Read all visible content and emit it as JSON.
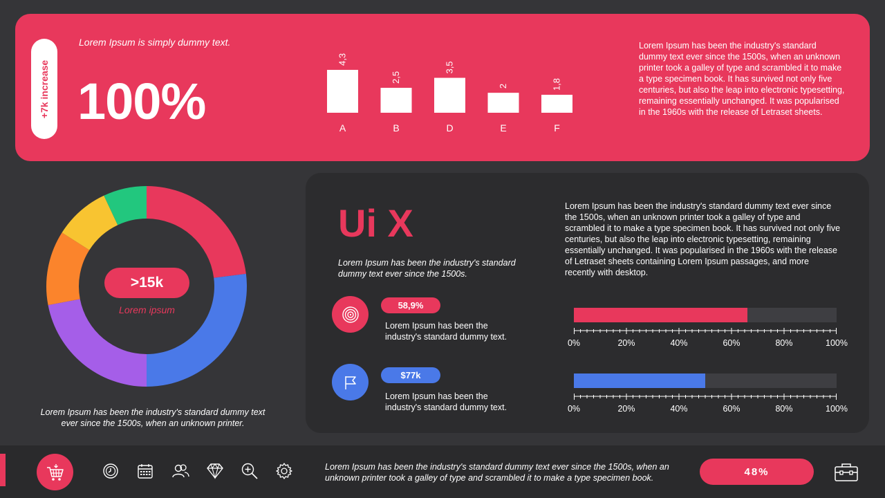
{
  "header": {
    "increase_label": "+7k increase",
    "tagline": "Lorem Ipsum is simply dummy text.",
    "big_number": "100%",
    "paragraph": "Lorem Ipsum has been the industry's standard dummy text ever since the 1500s, when an unknown printer took a galley of type and scrambled it to make a type specimen book. It has survived not only five centuries, but also the leap into electronic typesetting, remaining essentially unchanged. It was popularised in the 1960s with the release of Letraset sheets."
  },
  "chart_data": [
    {
      "type": "bar",
      "categories": [
        "A",
        "B",
        "D",
        "E",
        "F"
      ],
      "values": [
        4.3,
        2.5,
        3.5,
        2,
        1.8
      ],
      "value_labels": [
        "4,3",
        "2,5",
        "3,5",
        "2",
        "1,8"
      ],
      "title": "",
      "xlabel": "",
      "ylabel": "",
      "ylim": [
        0,
        4.3
      ],
      "color": "#ffffff"
    },
    {
      "type": "pie",
      "donut": true,
      "values": [
        23,
        27,
        22,
        12,
        9,
        7
      ],
      "colors": [
        "#e8385c",
        "#4a79e8",
        "#a55ee8",
        "#fb842c",
        "#f8c431",
        "#22c77e"
      ]
    }
  ],
  "donut": {
    "center_value": ">15k",
    "center_label": "Lorem ipsum",
    "caption": "Lorem Ipsum has been the industry's standard dummy text ever since the 1500s, when an unknown printer."
  },
  "panel": {
    "title": "Ui X",
    "subtitle": "Lorem Ipsum has been the industry's standard dummy text ever since the 1500s.",
    "paragraph": "Lorem Ipsum has been the industry's standard dummy text ever since the 1500s, when an unknown printer took a galley of type and scrambled it to make a type specimen book. It has survived not only five centuries, but also the leap into electronic typesetting, remaining essentially unchanged. It was popularised in the 1960s with the release of Letraset sheets containing Lorem Ipsum passages, and more recently with desktop.",
    "stats": [
      {
        "badge": "58,9%",
        "text": "Lorem Ipsum has been the industry's standard dummy text.",
        "icon": "target-icon",
        "color": "#e8385c"
      },
      {
        "badge": "$77k",
        "text": "Lorem Ipsum has been the industry's standard dummy text.",
        "icon": "flag-icon",
        "color": "#4a79e8"
      }
    ],
    "progress": [
      {
        "percent": 66,
        "color": "#e8385c"
      },
      {
        "percent": 50,
        "color": "#4a79e8"
      }
    ],
    "axis_labels": [
      "0%",
      "20%",
      "40%",
      "60%",
      "80%",
      "100%"
    ]
  },
  "footer": {
    "text": "Lorem Ipsum has been the industry's standard dummy text ever since the 1500s, when an unknown printer took a galley of type and scrambled it to make a type specimen book.",
    "pill": "48%",
    "icons": [
      "clock-icon",
      "calendar-icon",
      "users-icon",
      "diamond-icon",
      "zoom-in-icon",
      "gear-icon"
    ]
  },
  "colors": {
    "accent": "#e8385c",
    "blue": "#4a79e8",
    "background": "#353538",
    "panel": "#2c2c2e"
  }
}
